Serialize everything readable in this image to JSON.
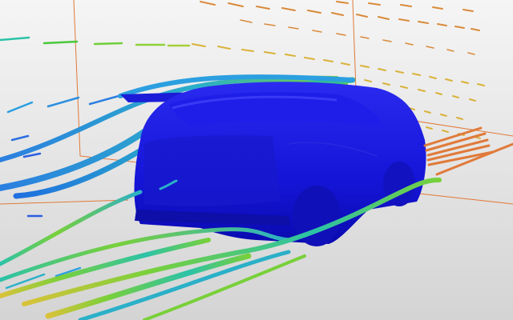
{
  "scene": {
    "subject": "cfd-car-airflow",
    "car_color": "#1a1ae6",
    "background_top": "#f4f4f4",
    "background_bottom": "#d6d6d6",
    "bounding_box_color": "#e07a3a",
    "colormap": [
      "#1a3dd6",
      "#1f8fe0",
      "#2bc2a8",
      "#79d03a",
      "#d9c23a",
      "#e07a3a"
    ]
  }
}
